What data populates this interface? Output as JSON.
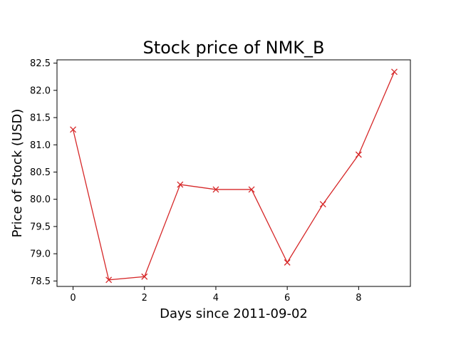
{
  "chart_data": {
    "type": "line",
    "title": "Stock price of NMK_B",
    "xlabel": "Days since 2011-09-02",
    "ylabel": "Price of Stock (USD)",
    "x": [
      0,
      1,
      2,
      3,
      4,
      5,
      6,
      7,
      8,
      9
    ],
    "series": [
      {
        "values": [
          81.28,
          78.52,
          78.58,
          80.27,
          80.18,
          80.18,
          78.84,
          79.91,
          80.82,
          82.34
        ],
        "color": "#d62728",
        "marker": "x"
      }
    ],
    "xlim": [
      -0.45,
      9.45
    ],
    "ylim": [
      78.4,
      82.56
    ],
    "xticks": [
      0,
      2,
      4,
      6,
      8
    ],
    "xtick_labels": [
      "0",
      "2",
      "4",
      "6",
      "8"
    ],
    "yticks": [
      78.5,
      79.0,
      79.5,
      80.0,
      80.5,
      81.0,
      81.5,
      82.0,
      82.5
    ],
    "ytick_labels": [
      "78.5",
      "79.0",
      "79.5",
      "80.0",
      "80.5",
      "81.0",
      "81.5",
      "82.0",
      "82.5"
    ],
    "grid": false,
    "legend": "none"
  }
}
